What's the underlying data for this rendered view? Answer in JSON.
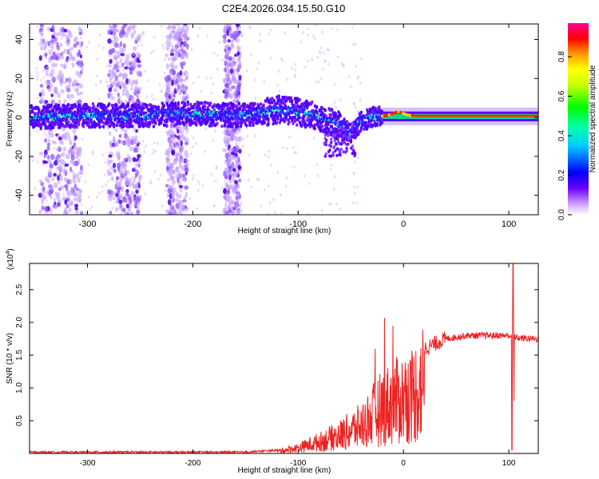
{
  "title": "C2E4.2026.034.15.50.G10",
  "chart_data": [
    {
      "type": "heatmap",
      "name": "spectrogram",
      "xlabel": "Height of straight line (km)",
      "ylabel": "Frequency (Hz)",
      "xlim": [
        -355,
        128
      ],
      "ylim": [
        -50,
        48
      ],
      "x_ticks": [
        -300,
        -200,
        -100,
        0,
        100
      ],
      "y_ticks": [
        -40,
        -20,
        0,
        20,
        40
      ],
      "colorbar": {
        "label": "Normalized spectral amplitude",
        "range": [
          0.0,
          0.97
        ],
        "ticks": [
          0.0,
          0.2,
          0.4,
          0.6,
          0.8
        ],
        "tick_labels": [
          "0.0",
          "0.2",
          "0.4",
          "0.6",
          "0.8"
        ],
        "colors": [
          "#ffffff",
          "#9966ff",
          "#3300ff",
          "#0000ff",
          "#00ffff",
          "#00ff00",
          "#ffff00",
          "#ff9900",
          "#ff0000",
          "#ff0099"
        ]
      },
      "ridge": [
        {
          "x": -355,
          "y": 0
        },
        {
          "x": -300,
          "y": 1
        },
        {
          "x": -250,
          "y": 1
        },
        {
          "x": -200,
          "y": 2
        },
        {
          "x": -150,
          "y": 1
        },
        {
          "x": -120,
          "y": 4
        },
        {
          "x": -100,
          "y": 3
        },
        {
          "x": -80,
          "y": 0
        },
        {
          "x": -60,
          "y": -4
        },
        {
          "x": -50,
          "y": -8
        },
        {
          "x": -40,
          "y": -2
        },
        {
          "x": -30,
          "y": 0
        },
        {
          "x": -15,
          "y": 1
        },
        {
          "x": -5,
          "y": 3
        },
        {
          "x": 5,
          "y": 1
        },
        {
          "x": 50,
          "y": 1
        },
        {
          "x": 100,
          "y": 1
        },
        {
          "x": 128,
          "y": 1
        }
      ],
      "scatter_bands_x": [
        [
          -345,
          -305
        ],
        [
          -280,
          -250
        ],
        [
          -225,
          -205
        ],
        [
          -170,
          -155
        ]
      ]
    },
    {
      "type": "line",
      "name": "snr",
      "xlabel": "Height of straight line (km)",
      "ylabel": "SNR (10 * v/v)",
      "y_multiplier": "(x10",
      "y_multiplier_exp": "4",
      "y_multiplier_close": ")",
      "xlim": [
        -355,
        128
      ],
      "ylim": [
        0,
        2.9
      ],
      "x_ticks": [
        -300,
        -200,
        -100,
        0,
        100
      ],
      "y_ticks": [
        0.5,
        1.0,
        1.5,
        2.0,
        2.5
      ],
      "y_tick_labels": [
        "0.5",
        "1.0",
        "1.5",
        "2.0",
        "2.5"
      ],
      "color": "#ee2222",
      "series_envelope": [
        {
          "x": -355,
          "y": 0.02
        },
        {
          "x": -150,
          "y": 0.02
        },
        {
          "x": -120,
          "y": 0.05
        },
        {
          "x": -100,
          "y": 0.12
        },
        {
          "x": -80,
          "y": 0.25
        },
        {
          "x": -60,
          "y": 0.4
        },
        {
          "x": -40,
          "y": 0.6
        },
        {
          "x": -30,
          "y": 0.8
        },
        {
          "x": -20,
          "y": 1.0
        },
        {
          "x": 0,
          "y": 1.2
        },
        {
          "x": 10,
          "y": 1.3
        },
        {
          "x": 20,
          "y": 1.6
        },
        {
          "x": 40,
          "y": 1.75
        },
        {
          "x": 60,
          "y": 1.8
        },
        {
          "x": 100,
          "y": 1.8
        },
        {
          "x": 110,
          "y": 1.76
        },
        {
          "x": 128,
          "y": 1.75
        }
      ],
      "spikes": [
        {
          "x": -18,
          "y": 2.07
        },
        {
          "x": -27,
          "y": 1.6
        },
        {
          "x": -10,
          "y": 1.95
        },
        {
          "x": 104,
          "y": 2.9
        },
        {
          "x": 103,
          "y": 0.05
        },
        {
          "x": 105,
          "y": 0.8
        }
      ]
    }
  ]
}
